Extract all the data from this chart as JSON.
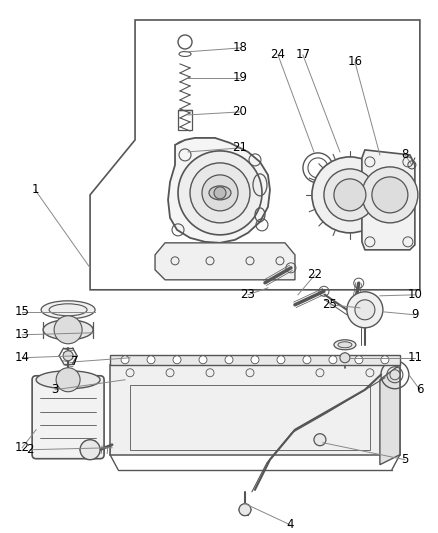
{
  "bg_color": "#ffffff",
  "line_color": "#555555",
  "label_color": "#000000",
  "fig_width": 4.38,
  "fig_height": 5.33,
  "dpi": 100
}
